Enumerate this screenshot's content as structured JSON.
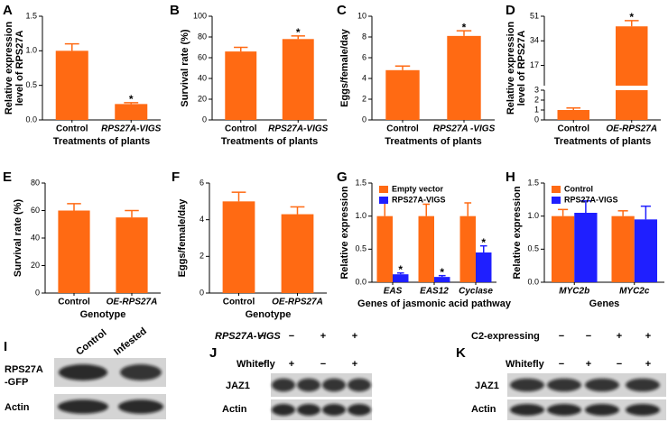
{
  "chart_data": [
    {
      "type": "bar",
      "label": "A",
      "ylabel": [
        "Relative expression",
        "level of RPS27A"
      ],
      "xlabel": "Treatments of plants",
      "categories": [
        "Control",
        "RPS27A-VIGS"
      ],
      "sig_label": "*",
      "series": [
        {
          "color": "#ff6a13",
          "values": [
            1.0,
            0.23
          ],
          "errors": [
            0.1,
            0.02
          ],
          "significant": [
            false,
            true
          ]
        }
      ],
      "ylim": [
        0,
        1.5
      ],
      "yticks": [
        {
          "value": 0,
          "label": "0.0"
        },
        0.5,
        {
          "value": 1,
          "label": "1.0"
        },
        1.5
      ]
    },
    {
      "type": "bar",
      "label": "B",
      "ylabel": "Survival rate (%)",
      "xlabel": "Treatments of plants",
      "categories": [
        "Control",
        "RPS27A-VIGS"
      ],
      "sig_label": "*",
      "series": [
        {
          "color": "#ff6a13",
          "values": [
            66,
            78
          ],
          "errors": [
            4,
            3
          ],
          "significant": [
            false,
            true
          ]
        }
      ],
      "ylim": [
        0,
        100
      ],
      "yticks": [
        0,
        20,
        40,
        60,
        80,
        100
      ]
    },
    {
      "type": "bar",
      "label": "C",
      "ylabel": "Eggs/female/day",
      "xlabel": "Treatments of plants",
      "categories": [
        "Control",
        "RPS27A -VIGS"
      ],
      "sig_label": "*",
      "series": [
        {
          "color": "#ff6a13",
          "values": [
            4.8,
            8.1
          ],
          "errors": [
            0.4,
            0.5
          ],
          "significant": [
            false,
            true
          ]
        }
      ],
      "ylim": [
        0,
        10
      ],
      "yticks": [
        0,
        2,
        4,
        6,
        8,
        10
      ]
    },
    {
      "type": "bar",
      "label": "D",
      "ylabel": [
        "Relative expression",
        "level of RPS27A"
      ],
      "xlabel": "Treatments of plants",
      "categories": [
        "Control",
        "OE-RPS27A"
      ],
      "sig_label": "*",
      "series": [
        {
          "color": "#ff6a13",
          "values": [
            1.0,
            44
          ],
          "errors": [
            0.2,
            4
          ],
          "significant": [
            false,
            true
          ]
        }
      ],
      "ylim": [
        0,
        51
      ],
      "ybreak": 3,
      "yticks": [
        0,
        1,
        2,
        3,
        17,
        34,
        51
      ]
    },
    {
      "type": "bar",
      "label": "E",
      "ylabel": "Survival rate (%)",
      "xlabel": "Genotype",
      "categories": [
        "Control",
        "OE-RPS27A"
      ],
      "series": [
        {
          "color": "#ff6a13",
          "values": [
            60,
            55
          ],
          "errors": [
            5,
            5
          ]
        }
      ],
      "ylim": [
        0,
        80
      ],
      "yticks": [
        0,
        20,
        40,
        60,
        80
      ]
    },
    {
      "type": "bar",
      "label": "F",
      "ylabel": "Eggs/female/day",
      "xlabel": "Genotype",
      "categories": [
        "Control",
        "OE-RPS27A"
      ],
      "series": [
        {
          "color": "#ff6a13",
          "values": [
            5.0,
            4.3
          ],
          "errors": [
            0.5,
            0.4
          ]
        }
      ],
      "ylim": [
        0,
        6
      ],
      "yticks": [
        0,
        2,
        4,
        6
      ]
    },
    {
      "type": "bar",
      "label": "G",
      "ylabel": "Relative expression",
      "xlabel": "Genes of  jasmonic acid pathway",
      "categories": [
        "EAS",
        "EAS12",
        "Cyclase"
      ],
      "sig_label": "*",
      "legend": "upper left",
      "series": [
        {
          "name": "Empty vector",
          "color": "#ff6a13",
          "values": [
            1.0,
            1.0,
            1.0
          ],
          "errors": [
            0.22,
            0.18,
            0.2
          ],
          "significant": [
            false,
            false,
            false
          ]
        },
        {
          "name": "RPS27A-VIGS",
          "color": "#1f1fff",
          "values": [
            0.12,
            0.08,
            0.45
          ],
          "errors": [
            0.02,
            0.02,
            0.1
          ],
          "significant": [
            true,
            true,
            true
          ]
        }
      ],
      "ylim": [
        0,
        1.5
      ],
      "yticks": [
        {
          "value": 0,
          "label": "0.0"
        },
        0.5,
        {
          "value": 1,
          "label": "1.0"
        },
        1.5
      ]
    },
    {
      "type": "bar",
      "label": "H",
      "ylabel": "Relative expression",
      "xlabel": "Genes",
      "categories": [
        "MYC2b",
        "MYC2c"
      ],
      "legend": "upper left",
      "series": [
        {
          "name": "Control",
          "color": "#ff6a13",
          "values": [
            1.0,
            1.0
          ],
          "errors": [
            0.1,
            0.08
          ]
        },
        {
          "name": "RPS27A-VIGS",
          "color": "#1f1fff",
          "values": [
            1.05,
            0.95
          ],
          "errors": [
            0.18,
            0.2
          ]
        }
      ],
      "ylim": [
        0,
        1.5
      ],
      "yticks": [
        {
          "value": 0,
          "label": "0.0"
        },
        0.5,
        {
          "value": 1,
          "label": "1.0"
        },
        1.5
      ]
    }
  ],
  "blots": [
    {
      "label": "I",
      "columns": [
        "Control",
        "Infested"
      ],
      "rows": [
        [
          "RPS27A",
          "-GFP"
        ],
        [
          "Actin"
        ]
      ]
    },
    {
      "label": "J",
      "conditions": [
        {
          "name": "RPS27A-VIGS",
          "signs": [
            "−",
            "−",
            "+",
            "+"
          ]
        },
        {
          "name": "Whitefly",
          "signs": [
            "−",
            "+",
            "−",
            "+"
          ]
        }
      ],
      "rows": [
        "JAZ1",
        "Actin"
      ]
    },
    {
      "label": "K",
      "conditions": [
        {
          "name": "C2-expressing",
          "signs": [
            "−",
            "−",
            "+",
            "+"
          ]
        },
        {
          "name": "Whitefly",
          "signs": [
            "−",
            "+",
            "−",
            "+"
          ]
        }
      ],
      "rows": [
        "JAZ1",
        "Actin"
      ]
    }
  ]
}
